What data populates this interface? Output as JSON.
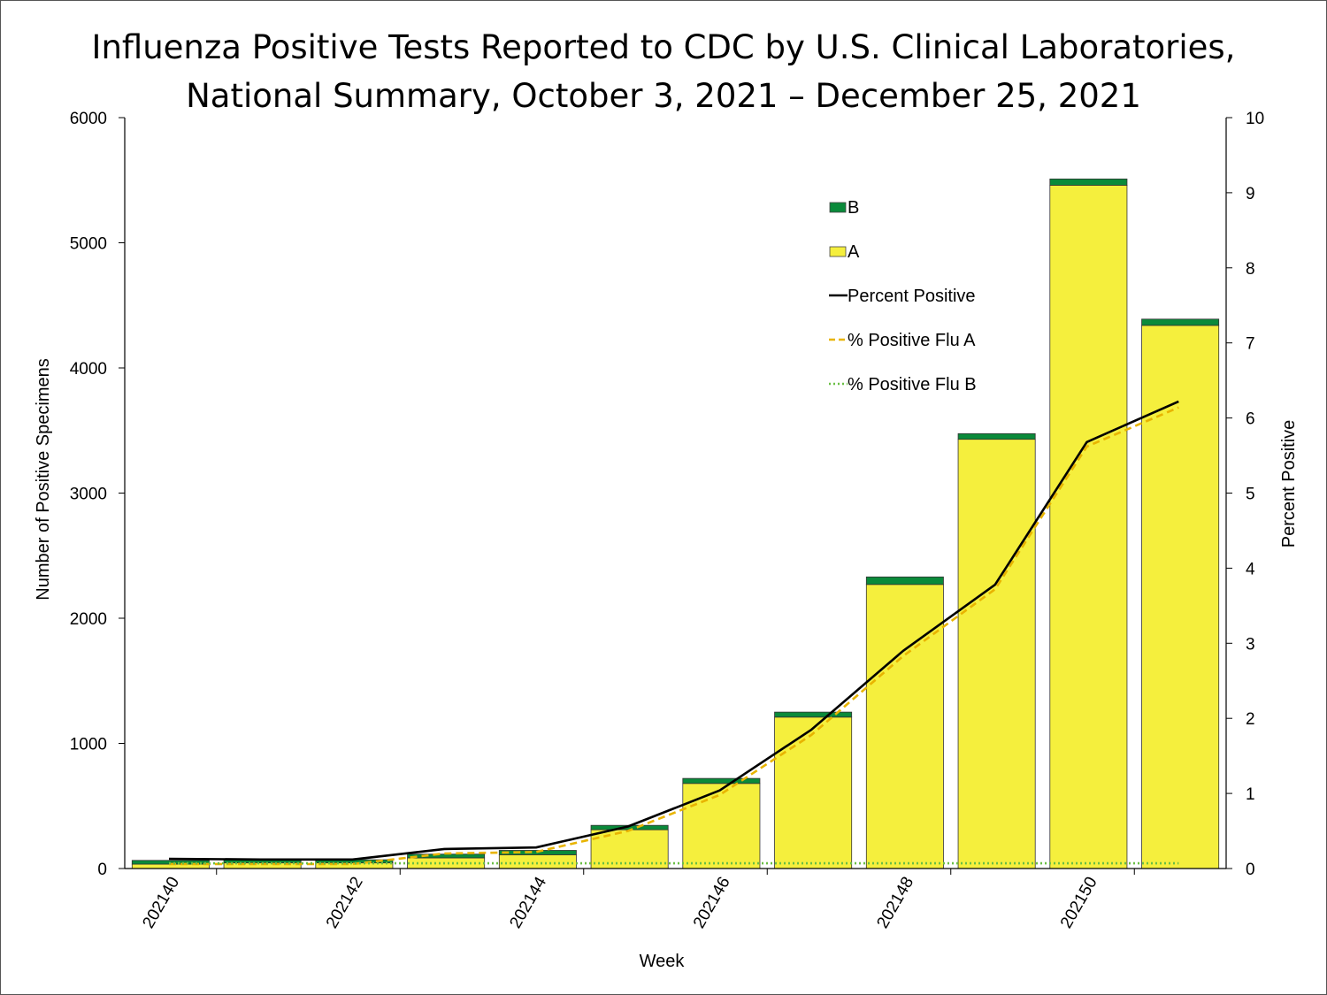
{
  "chart_data": {
    "type": "bar",
    "stacked": true,
    "title_lines": [
      "Influenza Positive Tests Reported to CDC by U.S. Clinical Laboratories,",
      "National Summary, October 3, 2021 – December 25, 2021"
    ],
    "xlabel": "Week",
    "ylabel_left": "Number of Positive Specimens",
    "ylabel_right": "Percent Positive",
    "ylim_left": [
      0,
      6000
    ],
    "ylim_right": [
      0,
      10
    ],
    "yticks_left": [
      "0",
      "1000",
      "2000",
      "3000",
      "4000",
      "5000",
      "6000"
    ],
    "yticks_right": [
      "0",
      "1",
      "2",
      "3",
      "4",
      "5",
      "6",
      "7",
      "8",
      "9",
      "10"
    ],
    "x_tick_labels": [
      "202140",
      "202142",
      "202144",
      "202146",
      "202148",
      "202150"
    ],
    "categories": [
      "202140",
      "202141",
      "202142",
      "202143",
      "202144",
      "202145",
      "202146",
      "202147",
      "202148",
      "202149",
      "202150",
      "202151"
    ],
    "series": [
      {
        "name": "A",
        "kind": "bar",
        "color": "#f5ef3d",
        "values": [
          35,
          45,
          45,
          85,
          110,
          310,
          680,
          1210,
          2270,
          3430,
          5460,
          4340
        ]
      },
      {
        "name": "B",
        "kind": "bar",
        "color": "#0a8a3a",
        "values": [
          30,
          25,
          25,
          30,
          35,
          35,
          40,
          40,
          60,
          45,
          50,
          50
        ]
      },
      {
        "name": "Percent Positive",
        "kind": "line",
        "color": "#000000",
        "values": [
          0.13,
          0.12,
          0.12,
          0.26,
          0.28,
          0.56,
          1.04,
          1.85,
          2.9,
          3.78,
          5.68,
          6.22
        ]
      },
      {
        "name": "% Positive Flu A",
        "kind": "line",
        "color": "#e8b400",
        "values": [
          0.06,
          0.06,
          0.06,
          0.2,
          0.22,
          0.5,
          0.98,
          1.78,
          2.83,
          3.72,
          5.62,
          6.14
        ]
      },
      {
        "name": "% Positive Flu B",
        "kind": "line",
        "color": "#6abf45",
        "values": [
          0.07,
          0.07,
          0.07,
          0.07,
          0.07,
          0.07,
          0.07,
          0.07,
          0.07,
          0.07,
          0.07,
          0.07
        ]
      }
    ],
    "legend": {
      "position": "upper-right-inside",
      "entries": [
        "B",
        "A",
        "Percent Positive",
        "% Positive Flu A",
        "% Positive Flu B"
      ]
    },
    "grid": false
  }
}
